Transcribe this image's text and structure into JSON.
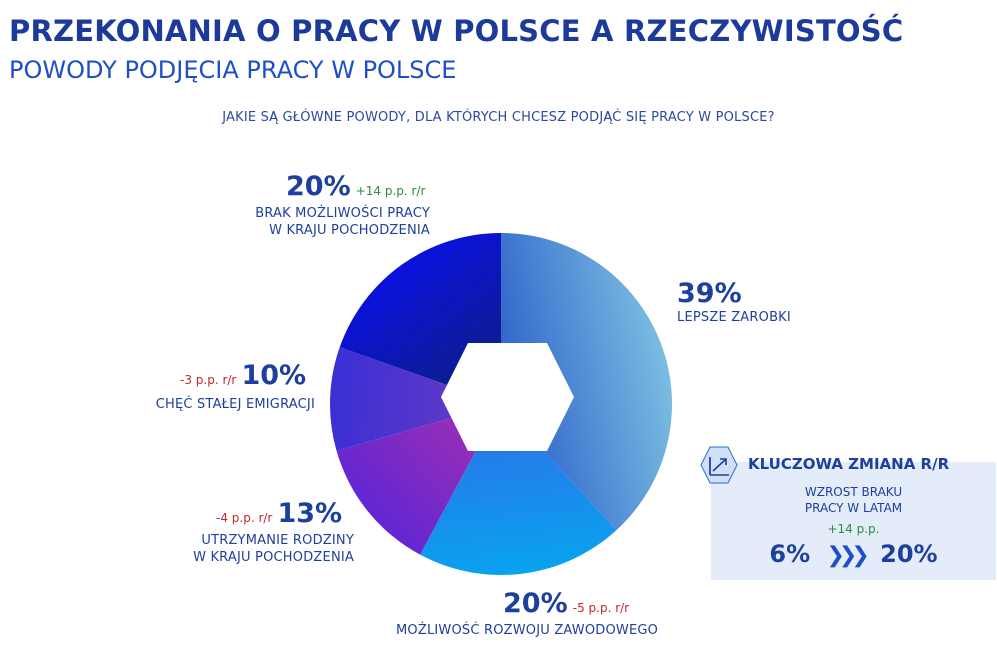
{
  "header": {
    "title": "PRZEKONANIA O PRACY W POLSCE A RZECZYWISTOŚĆ",
    "subtitle": "POWODY PODJĘCIA PRACY W POLSCE",
    "question": "JAKIE SĄ GŁÓWNE POWODY, DLA KTÓRYCH CHCESZ PODJĄĆ SIĘ PRACY W POLSCE?"
  },
  "chart_data": {
    "type": "pie",
    "title": "",
    "slices": [
      {
        "label_lines": [
          "LEPSZE ZAROBKI"
        ],
        "value": 39,
        "display": "39%",
        "change": "",
        "colors": [
          "#2a5fc9",
          "#7ec0e2"
        ]
      },
      {
        "label_lines": [
          "MOŻLIWOŚĆ ROZWOJU ZAWODOWEGO"
        ],
        "value": 20,
        "display": "20%",
        "change": "-5 p.p. r/r",
        "colors": [
          "#2f6fe8",
          "#08a3ef"
        ]
      },
      {
        "label_lines": [
          "UTRZYMANIE RODZINY",
          "W KRAJU POCHODZENIA"
        ],
        "value": 13,
        "display": "13%",
        "change": "-4 p.p. r/r",
        "colors": [
          "#9a2fb4",
          "#5a25d8"
        ]
      },
      {
        "label_lines": [
          "CHĘĆ STAŁEJ EMIGRACJI"
        ],
        "value": 10,
        "display": "10%",
        "change": "-3 p.p. r/r",
        "colors": [
          "#6b3cc0",
          "#3a2fd6"
        ]
      },
      {
        "label_lines": [
          "BRAK MOŻLIWOŚCI PRACY",
          "W KRAJU POCHODZENIA"
        ],
        "value": 20,
        "display": "20%",
        "change": "+14 p.p. r/r",
        "colors": [
          "#0c1e8a",
          "#0a0ef0"
        ]
      }
    ]
  },
  "key_change": {
    "icon": "trend-up-icon",
    "heading": "KLUCZOWA ZMIANA R/R",
    "text_line1": "WZROST BRAKU",
    "text_line2": "PRACY W LATAM",
    "change": "+14 p.p.",
    "from": "6%",
    "to": "20%"
  },
  "colors": {
    "title": "#1b3a9a",
    "accent": "#1f4fc8",
    "positive": "#2e8b3c",
    "negative": "#c0282e",
    "panel_bg": "#e3ecf8"
  }
}
